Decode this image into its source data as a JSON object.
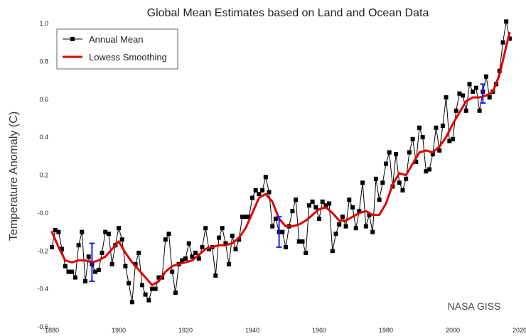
{
  "chart_data": {
    "type": "line",
    "title": "Global Mean Estimates based on Land and Ocean Data",
    "ylabel": "Temperature Anomaly (C)",
    "xlabel": "",
    "xlim": [
      1880,
      2020
    ],
    "ylim": [
      -0.6,
      1.0
    ],
    "x_ticks": [
      "1880",
      "1900",
      "1920",
      "1940",
      "1960",
      "1980",
      "2000",
      "2020"
    ],
    "y_ticks": [
      "1.0",
      "0.8",
      "0.6",
      "0.4",
      "0.2",
      "-0.0",
      "-0.2",
      "-0.4",
      "-0.6"
    ],
    "legend_position": "top-left",
    "grid": false,
    "credit": "NASA GISS",
    "series": [
      {
        "name": "Annual Mean",
        "color": "#000000",
        "marker": "square",
        "x": [
          1880,
          1881,
          1882,
          1883,
          1884,
          1885,
          1886,
          1887,
          1888,
          1889,
          1890,
          1891,
          1892,
          1893,
          1894,
          1895,
          1896,
          1897,
          1898,
          1899,
          1900,
          1901,
          1902,
          1903,
          1904,
          1905,
          1906,
          1907,
          1908,
          1909,
          1910,
          1911,
          1912,
          1913,
          1914,
          1915,
          1916,
          1917,
          1918,
          1919,
          1920,
          1921,
          1922,
          1923,
          1924,
          1925,
          1926,
          1927,
          1928,
          1929,
          1930,
          1931,
          1932,
          1933,
          1934,
          1935,
          1936,
          1937,
          1938,
          1939,
          1940,
          1941,
          1942,
          1943,
          1944,
          1945,
          1946,
          1947,
          1948,
          1949,
          1950,
          1951,
          1952,
          1953,
          1954,
          1955,
          1956,
          1957,
          1958,
          1959,
          1960,
          1961,
          1962,
          1963,
          1964,
          1965,
          1966,
          1967,
          1968,
          1969,
          1970,
          1971,
          1972,
          1973,
          1974,
          1975,
          1976,
          1977,
          1978,
          1979,
          1980,
          1981,
          1982,
          1983,
          1984,
          1985,
          1986,
          1987,
          1988,
          1989,
          1990,
          1991,
          1992,
          1993,
          1994,
          1995,
          1996,
          1997,
          1998,
          1999,
          2000,
          2001,
          2002,
          2003,
          2004,
          2005,
          2006,
          2007,
          2008,
          2009,
          2010,
          2011,
          2012,
          2013,
          2014,
          2015,
          2016,
          2017
        ],
        "values": [
          -0.18,
          -0.09,
          -0.1,
          -0.19,
          -0.28,
          -0.31,
          -0.31,
          -0.34,
          -0.17,
          -0.1,
          -0.36,
          -0.23,
          -0.27,
          -0.31,
          -0.3,
          -0.21,
          -0.1,
          -0.11,
          -0.27,
          -0.17,
          -0.08,
          -0.14,
          -0.28,
          -0.37,
          -0.47,
          -0.27,
          -0.21,
          -0.38,
          -0.43,
          -0.46,
          -0.4,
          -0.4,
          -0.34,
          -0.34,
          -0.14,
          -0.11,
          -0.31,
          -0.42,
          -0.27,
          -0.25,
          -0.24,
          -0.16,
          -0.23,
          -0.21,
          -0.24,
          -0.18,
          -0.08,
          -0.19,
          -0.18,
          -0.33,
          -0.13,
          -0.08,
          -0.16,
          -0.27,
          -0.12,
          -0.19,
          -0.14,
          -0.02,
          -0.02,
          -0.02,
          0.08,
          0.12,
          0.1,
          0.12,
          0.19,
          0.11,
          -0.07,
          -0.03,
          -0.1,
          -0.1,
          -0.18,
          -0.07,
          0.01,
          0.07,
          -0.15,
          -0.15,
          -0.21,
          0.04,
          0.06,
          0.03,
          -0.03,
          0.06,
          0.04,
          0.05,
          -0.2,
          -0.11,
          -0.06,
          -0.02,
          -0.07,
          0.07,
          0.03,
          -0.08,
          0.01,
          0.16,
          -0.07,
          -0.01,
          -0.1,
          0.18,
          0.07,
          0.16,
          0.26,
          0.32,
          0.14,
          0.31,
          0.16,
          0.12,
          0.18,
          0.32,
          0.39,
          0.27,
          0.45,
          0.4,
          0.22,
          0.23,
          0.31,
          0.45,
          0.33,
          0.46,
          0.61,
          0.38,
          0.39,
          0.54,
          0.63,
          0.62,
          0.54,
          0.68,
          0.64,
          0.66,
          0.54,
          0.64,
          0.72,
          0.61,
          0.64,
          0.68,
          0.75,
          0.9,
          1.01,
          0.92
        ]
      },
      {
        "name": "Lowess Smoothing",
        "color": "#e00000",
        "x": [
          1880,
          1882,
          1884,
          1886,
          1888,
          1890,
          1892,
          1894,
          1896,
          1898,
          1900,
          1902,
          1904,
          1906,
          1908,
          1910,
          1912,
          1914,
          1916,
          1918,
          1920,
          1922,
          1924,
          1926,
          1928,
          1930,
          1932,
          1934,
          1936,
          1938,
          1940,
          1942,
          1944,
          1946,
          1948,
          1950,
          1952,
          1954,
          1956,
          1958,
          1960,
          1962,
          1964,
          1966,
          1968,
          1970,
          1972,
          1974,
          1976,
          1978,
          1980,
          1982,
          1984,
          1986,
          1988,
          1990,
          1992,
          1994,
          1996,
          1998,
          2000,
          2002,
          2004,
          2006,
          2008,
          2010,
          2012,
          2014,
          2016,
          2017
        ],
        "values": [
          -0.1,
          -0.18,
          -0.25,
          -0.26,
          -0.25,
          -0.25,
          -0.26,
          -0.25,
          -0.23,
          -0.19,
          -0.15,
          -0.21,
          -0.26,
          -0.3,
          -0.34,
          -0.38,
          -0.36,
          -0.31,
          -0.28,
          -0.27,
          -0.26,
          -0.25,
          -0.22,
          -0.19,
          -0.18,
          -0.17,
          -0.17,
          -0.16,
          -0.13,
          -0.08,
          0.0,
          0.08,
          0.1,
          0.06,
          -0.03,
          -0.07,
          -0.07,
          -0.06,
          -0.04,
          -0.01,
          0.02,
          0.03,
          0.0,
          -0.04,
          -0.04,
          -0.02,
          0.0,
          0.01,
          -0.01,
          -0.01,
          0.05,
          0.15,
          0.21,
          0.2,
          0.26,
          0.32,
          0.33,
          0.32,
          0.35,
          0.4,
          0.47,
          0.53,
          0.59,
          0.61,
          0.61,
          0.62,
          0.64,
          0.73,
          0.88,
          0.95
        ]
      }
    ],
    "uncertainty_bars": [
      {
        "x": 1892,
        "low": -0.36,
        "high": -0.16,
        "color": "#1a1aff"
      },
      {
        "x": 1948,
        "low": -0.18,
        "high": -0.02,
        "color": "#1a1aff"
      },
      {
        "x": 2009,
        "low": 0.58,
        "high": 0.68,
        "color": "#1a1aff"
      }
    ]
  }
}
